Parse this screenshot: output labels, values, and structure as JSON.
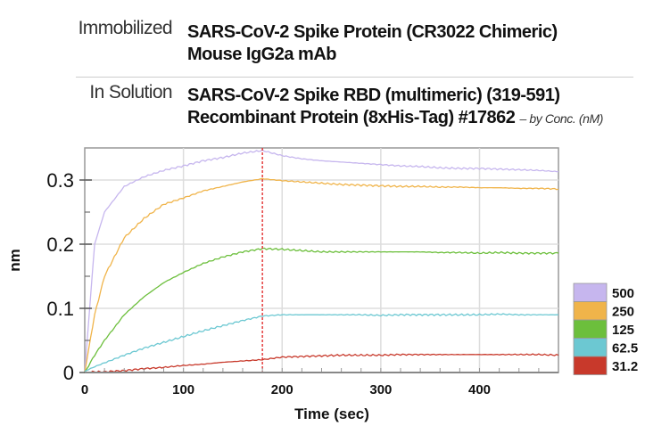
{
  "header": {
    "immobilized_label": "Immobilized",
    "immobilized_line1": "SARS-CoV-2 Spike Protein (CR3022 Chimeric)",
    "immobilized_line2": "Mouse IgG2a mAb",
    "solution_label": "In Solution",
    "solution_line1": "SARS-CoV-2 Spike RBD (multimeric) (319-591)",
    "solution_line2": "Recombinant Protein (8xHis-Tag) #17862",
    "solution_note": "– by Conc. (nM)"
  },
  "chart_data": {
    "type": "line",
    "xlabel": "Time (sec)",
    "ylabel": "nm",
    "xlim": [
      0,
      480
    ],
    "ylim": [
      0,
      0.35
    ],
    "xticks": [
      0,
      100,
      200,
      300,
      400
    ],
    "yticks": [
      0,
      0.1,
      0.2,
      0.3
    ],
    "grid": true,
    "legend": "right",
    "vertical_marker": {
      "x": 180,
      "color": "#e02020",
      "style": "dashed"
    },
    "x": [
      0,
      10,
      20,
      40,
      60,
      80,
      100,
      120,
      140,
      160,
      180,
      200,
      220,
      240,
      260,
      280,
      300,
      320,
      340,
      360,
      380,
      400,
      420,
      440,
      460,
      480
    ],
    "series": [
      {
        "name": "500",
        "color": "#c6b6ee",
        "values": [
          0,
          0.2,
          0.25,
          0.29,
          0.305,
          0.315,
          0.322,
          0.33,
          0.335,
          0.342,
          0.346,
          0.338,
          0.333,
          0.33,
          0.328,
          0.326,
          0.324,
          0.322,
          0.321,
          0.319,
          0.318,
          0.318,
          0.317,
          0.316,
          0.315,
          0.313
        ]
      },
      {
        "name": "250",
        "color": "#f0b44a",
        "values": [
          0,
          0.09,
          0.15,
          0.21,
          0.24,
          0.262,
          0.272,
          0.283,
          0.29,
          0.297,
          0.302,
          0.299,
          0.297,
          0.295,
          0.293,
          0.292,
          0.291,
          0.29,
          0.29,
          0.289,
          0.289,
          0.288,
          0.288,
          0.287,
          0.287,
          0.286
        ]
      },
      {
        "name": "125",
        "color": "#6cbf3c",
        "values": [
          0,
          0.027,
          0.05,
          0.09,
          0.118,
          0.14,
          0.156,
          0.17,
          0.18,
          0.188,
          0.193,
          0.192,
          0.19,
          0.188,
          0.188,
          0.188,
          0.188,
          0.188,
          0.188,
          0.187,
          0.187,
          0.186,
          0.187,
          0.186,
          0.186,
          0.186
        ]
      },
      {
        "name": "62.5",
        "color": "#6cc8d2",
        "values": [
          0.002,
          0.009,
          0.015,
          0.027,
          0.038,
          0.047,
          0.056,
          0.065,
          0.073,
          0.081,
          0.088,
          0.09,
          0.09,
          0.09,
          0.09,
          0.09,
          0.089,
          0.09,
          0.09,
          0.09,
          0.09,
          0.09,
          0.091,
          0.09,
          0.09,
          0.09
        ]
      },
      {
        "name": "31.2",
        "color": "#c8392b",
        "values": [
          0,
          0.001,
          0.001,
          0.003,
          0.006,
          0.008,
          0.011,
          0.013,
          0.016,
          0.018,
          0.02,
          0.024,
          0.025,
          0.026,
          0.027,
          0.027,
          0.027,
          0.028,
          0.028,
          0.028,
          0.028,
          0.028,
          0.028,
          0.028,
          0.028,
          0.027
        ]
      }
    ]
  }
}
